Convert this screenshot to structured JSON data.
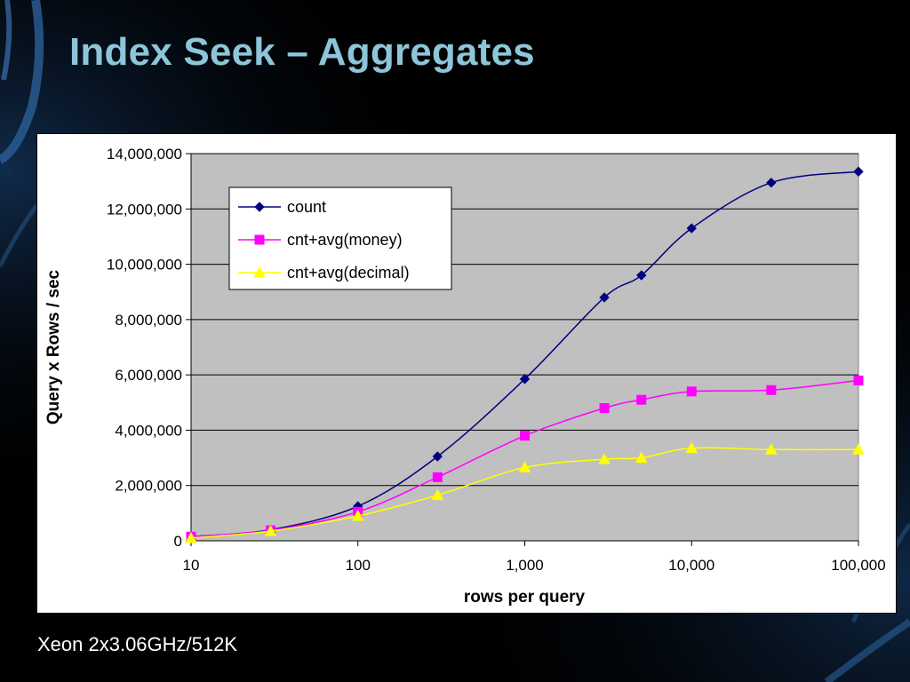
{
  "slide": {
    "title": "Index Seek – Aggregates",
    "footnote": "Xeon 2x3.06GHz/512K"
  },
  "colors": {
    "background": "#000000",
    "title": "#8cc6d8",
    "plot_area": "#c0c0c0",
    "accent_glow": "#1e4f8a"
  },
  "chart_data": {
    "type": "line",
    "xlabel": "rows per query",
    "ylabel": "Query x Rows / sec",
    "x_scale": "log",
    "x": [
      10,
      30,
      100,
      300,
      1000,
      3000,
      5000,
      10000,
      30000,
      100000
    ],
    "xticks": [
      10,
      100,
      1000,
      10000,
      100000
    ],
    "xtick_labels": [
      "10",
      "100",
      "1,000",
      "10,000",
      "100,000"
    ],
    "xlim": [
      10,
      100000
    ],
    "ylim": [
      0,
      14000000
    ],
    "yticks": [
      0,
      2000000,
      4000000,
      6000000,
      8000000,
      10000000,
      12000000,
      14000000
    ],
    "ytick_labels": [
      "0",
      "2,000,000",
      "4,000,000",
      "6,000,000",
      "8,000,000",
      "10,000,000",
      "12,000,000",
      "14,000,000"
    ],
    "grid": "horizontal",
    "legend": "top-left",
    "series": [
      {
        "name": "count",
        "color": "#000080",
        "marker": "diamond",
        "values": [
          150000,
          400000,
          1250000,
          3050000,
          5850000,
          8800000,
          9600000,
          11300000,
          12950000,
          13350000
        ]
      },
      {
        "name": "cnt+avg(money)",
        "color": "#ff00ff",
        "marker": "square",
        "values": [
          150000,
          380000,
          1050000,
          2300000,
          3800000,
          4800000,
          5100000,
          5400000,
          5450000,
          5800000
        ]
      },
      {
        "name": "cnt+avg(decimal)",
        "color": "#ffff00",
        "marker": "triangle",
        "values": [
          100000,
          350000,
          900000,
          1650000,
          2650000,
          2950000,
          3000000,
          3350000,
          3300000,
          3300000
        ]
      }
    ]
  }
}
